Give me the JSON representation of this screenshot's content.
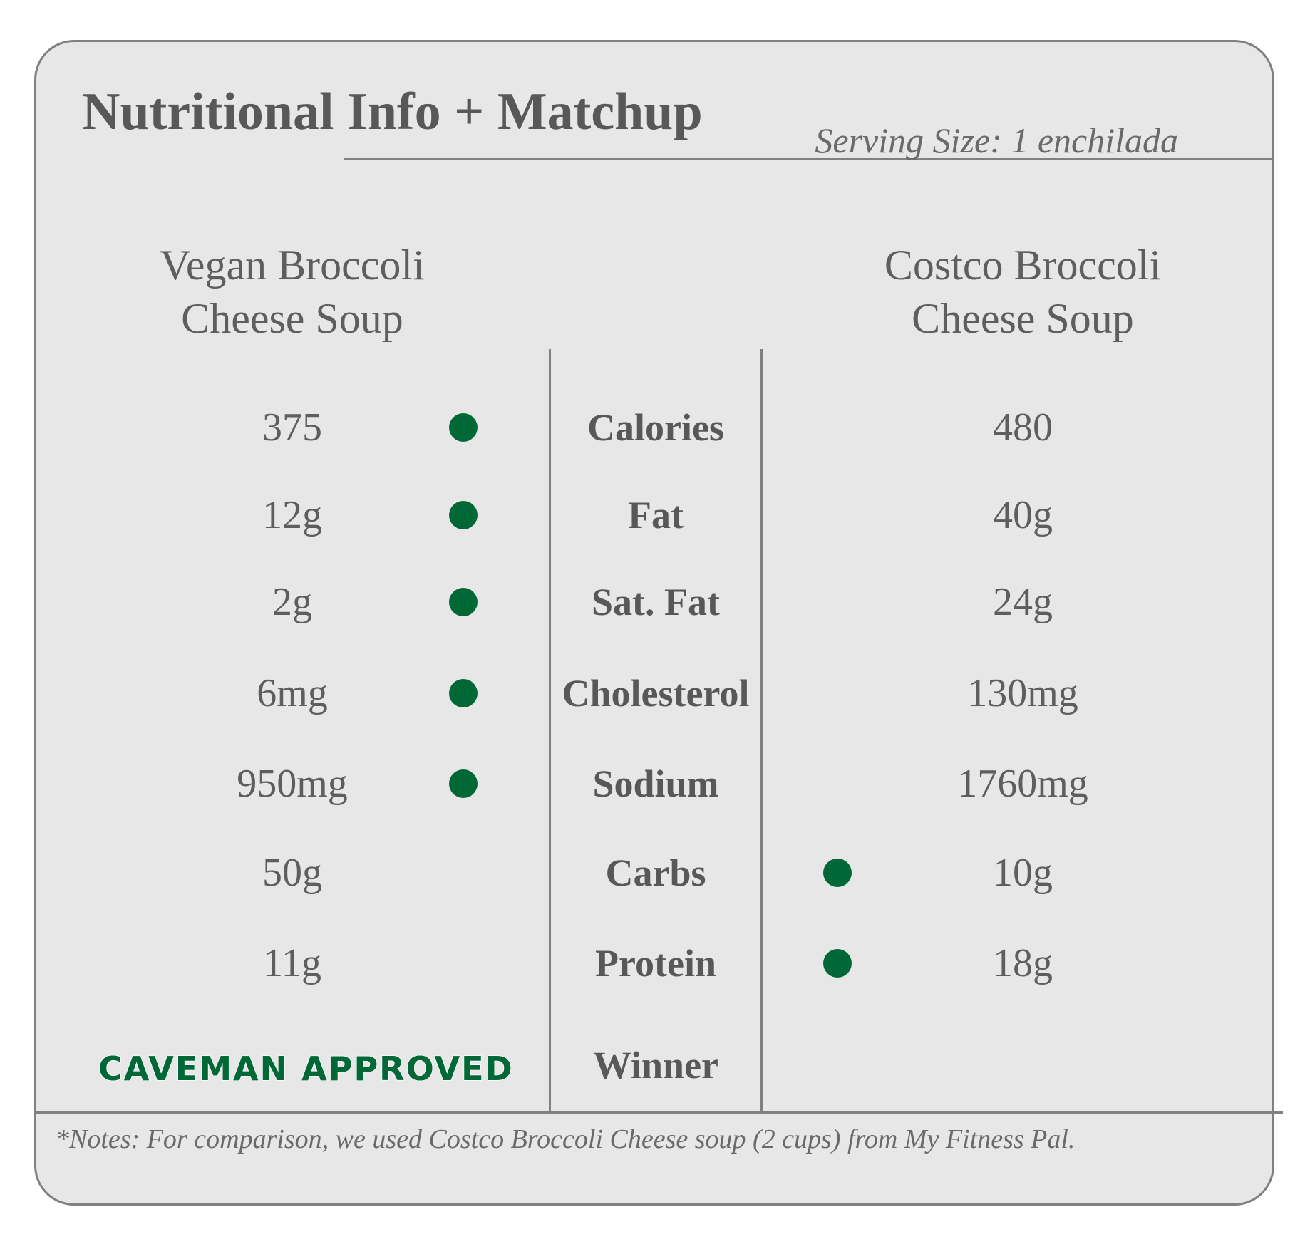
{
  "title": "Nutritional Info + Matchup",
  "serving_size": "Serving Size: 1 enchilada",
  "columns": {
    "left": {
      "line1": "Vegan Broccoli",
      "line2": "Cheese Soup"
    },
    "right": {
      "line1": "Costco Broccoli",
      "line2": "Cheese Soup"
    }
  },
  "rows": [
    {
      "label": "Calories",
      "left": "375",
      "right": "480",
      "winner": "left"
    },
    {
      "label": "Fat",
      "left": "12g",
      "right": "40g",
      "winner": "left"
    },
    {
      "label": "Sat. Fat",
      "left": "2g",
      "right": "24g",
      "winner": "left"
    },
    {
      "label": "Cholesterol",
      "left": "6mg",
      "right": "130mg",
      "winner": "left"
    },
    {
      "label": "Sodium",
      "left": "950mg",
      "right": "1760mg",
      "winner": "left"
    },
    {
      "label": "Carbs",
      "left": "50g",
      "right": "10g",
      "winner": "right"
    },
    {
      "label": "Protein",
      "left": "11g",
      "right": "18g",
      "winner": "right"
    }
  ],
  "winner_label": "Winner",
  "winner_badge": "CAVEMAN APPROVED",
  "notes": "*Notes: For comparison, we used Costco Broccoli Cheese soup (2 cups) from My Fitness Pal.",
  "colors": {
    "accent": "#006837",
    "text": "#58585a",
    "card_background": "#e7e7e7",
    "border": "#808080"
  }
}
